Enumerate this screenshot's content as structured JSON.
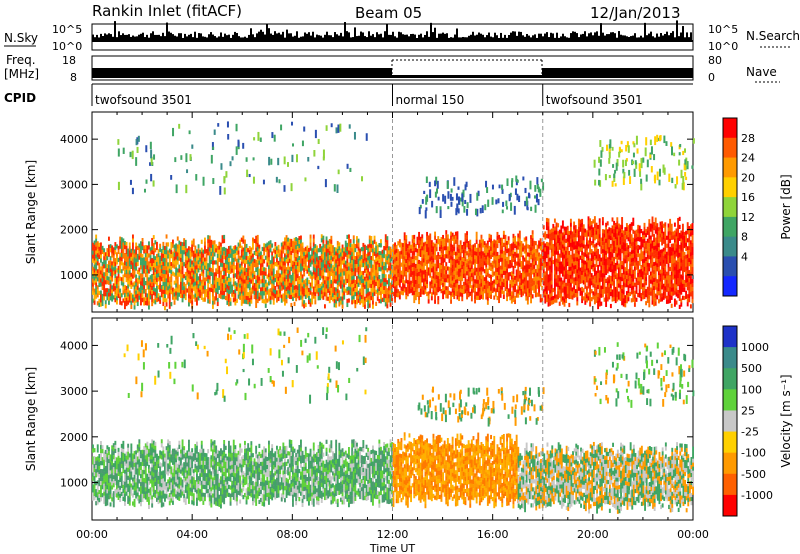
{
  "header": {
    "station": "Rankin Inlet (fitACF)",
    "beam": "Beam 05",
    "date": "12/Jan/2013"
  },
  "top_panels": {
    "nsky_label": "N.Sky",
    "nsky_ticks": [
      "10^5",
      "10^0"
    ],
    "nsearch_label": "N.Search",
    "nsearch_ticks": [
      "10^5",
      "10^0"
    ],
    "freq_label": "Freq.",
    "freq_unit": "[MHz]",
    "freq_ticks": [
      "18",
      "8"
    ],
    "nave_label": "Nave",
    "nave_ticks": [
      "80",
      "0"
    ],
    "cpid_label": "CPID",
    "cpid_segments": [
      {
        "name": "twofsound 3501",
        "start_hour": 0,
        "end_hour": 12
      },
      {
        "name": "normal 150",
        "start_hour": 12,
        "end_hour": 18
      },
      {
        "name": "twofsound 3501",
        "start_hour": 18,
        "end_hour": 24
      }
    ]
  },
  "chart_data": [
    {
      "type": "heatmap",
      "name": "power",
      "ylabel": "Slant Range [km]",
      "yticks": [
        "4000",
        "3000",
        "2000",
        "1000"
      ],
      "ylim_km": [
        180,
        4600
      ],
      "xlim_hours": [
        0,
        24
      ],
      "colorbar": {
        "label": "Power [dB]",
        "ticks": [
          "28",
          "24",
          "20",
          "16",
          "12",
          "8",
          "4"
        ],
        "colors": [
          "#ff0000",
          "#ff5a00",
          "#ff9a00",
          "#ffd000",
          "#8fd43a",
          "#3fa564",
          "#3a8a8a",
          "#2a4fb0",
          "#1428ff"
        ]
      },
      "bands": [
        {
          "h0": 0,
          "h1": 12,
          "r0": 300,
          "r1": 1900,
          "levels": [
            "#ff2a00",
            "#ff7a00",
            "#ffb000",
            "#3fa564"
          ]
        },
        {
          "h0": 12,
          "h1": 18,
          "r0": 400,
          "r1": 2000,
          "levels": [
            "#ff1400",
            "#ff4a00",
            "#ff8a00"
          ]
        },
        {
          "h0": 18,
          "h1": 24,
          "r0": 300,
          "r1": 2300,
          "levels": [
            "#ff0000",
            "#ff3000",
            "#ff6a00"
          ]
        }
      ],
      "sparse": [
        {
          "h0": 1,
          "h1": 11,
          "r0": 2900,
          "r1": 4400,
          "levels": [
            "#3a8a8a",
            "#8fd43a",
            "#2a4fb0",
            "#3fa564"
          ]
        },
        {
          "h0": 13,
          "h1": 18,
          "r0": 2400,
          "r1": 3200,
          "levels": [
            "#3fa564",
            "#2a4fb0"
          ]
        },
        {
          "h0": 20,
          "h1": 24,
          "r0": 3000,
          "r1": 4100,
          "levels": [
            "#8fd43a",
            "#3fa564",
            "#ffd000"
          ]
        }
      ]
    },
    {
      "type": "heatmap",
      "name": "velocity",
      "ylabel": "Slant Range [km]",
      "yticks": [
        "4000",
        "3000",
        "2000",
        "1000"
      ],
      "ylim_km": [
        180,
        4600
      ],
      "xlim_hours": [
        0,
        24
      ],
      "xticks": [
        "00:00",
        "04:00",
        "08:00",
        "12:00",
        "16:00",
        "20:00",
        "00:00"
      ],
      "xlabel": "Time UT",
      "colorbar": {
        "label": "Velocity [m s⁻¹]",
        "ticks": [
          "1000",
          "500",
          "100",
          "25",
          "-25",
          "-100",
          "-500",
          "-1000"
        ],
        "colors": [
          "#1e32c8",
          "#3a8a8a",
          "#3fa564",
          "#5fd23a",
          "#c8c8c8",
          "#ffd000",
          "#ff9a00",
          "#ff6000",
          "#ff0000"
        ]
      },
      "bands": [
        {
          "h0": 0,
          "h1": 12,
          "r0": 500,
          "r1": 1950,
          "levels": [
            "#3fa564",
            "#4c9a70",
            "#5fd23a",
            "#c8c8c8"
          ]
        },
        {
          "h0": 12,
          "h1": 17,
          "r0": 500,
          "r1": 2100,
          "levels": [
            "#ff9a00",
            "#ff7a00",
            "#ffb000"
          ]
        },
        {
          "h0": 17,
          "h1": 24,
          "r0": 400,
          "r1": 1900,
          "levels": [
            "#c8c8c8",
            "#ff9a00",
            "#3fa564"
          ]
        }
      ],
      "sparse": [
        {
          "h0": 1,
          "h1": 11,
          "r0": 2900,
          "r1": 4400,
          "levels": [
            "#3fa564",
            "#5fd23a",
            "#ff9a00",
            "#ffd000"
          ]
        },
        {
          "h0": 13,
          "h1": 18,
          "r0": 2400,
          "r1": 3100,
          "levels": [
            "#ff9a00",
            "#3fa564"
          ]
        },
        {
          "h0": 20,
          "h1": 24,
          "r0": 2800,
          "r1": 4100,
          "levels": [
            "#ff9a00",
            "#5fd23a",
            "#3fa564"
          ]
        }
      ]
    }
  ]
}
